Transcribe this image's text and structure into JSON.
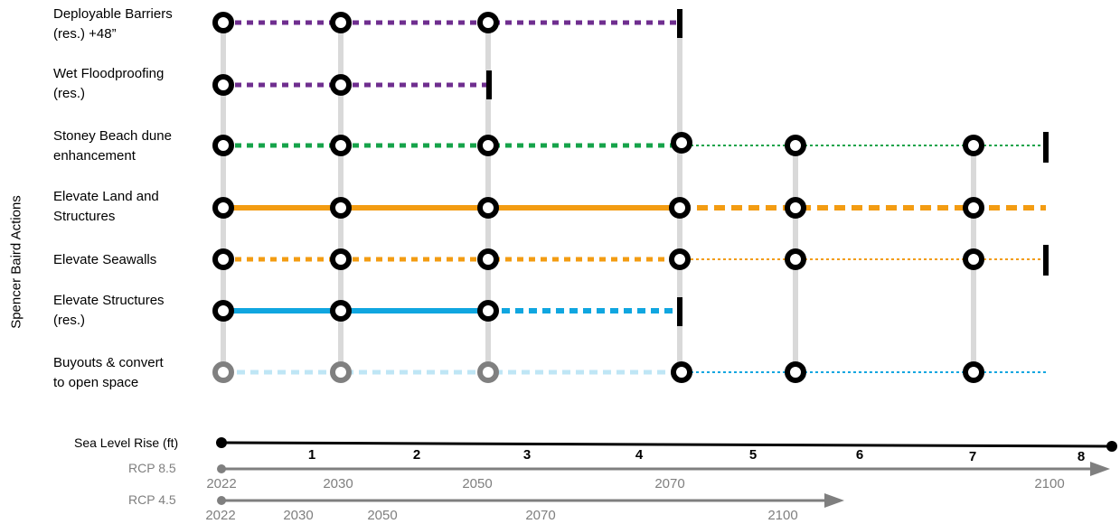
{
  "y_axis_label": "Spencer Baird Actions",
  "actions": [
    {
      "line1": "Deployable Barriers",
      "line2": "(res.) +48”",
      "color": "#6f2e8f"
    },
    {
      "line1": "Wet Floodproofing",
      "line2": "(res.)",
      "color": "#6f2e8f"
    },
    {
      "line1": "Stoney Beach dune",
      "line2": "enhancement",
      "color": "#16a34a"
    },
    {
      "line1": "Elevate Land and",
      "line2": "Structures",
      "color": "#f39c12"
    },
    {
      "line1": "Elevate Seawalls",
      "line2": "",
      "color": "#f39c12"
    },
    {
      "line1": "Elevate Structures",
      "line2": "(res.)",
      "color": "#10a6e0"
    },
    {
      "line1": "Buyouts & convert",
      "line2": "to open space",
      "color": "#10a6e0"
    }
  ],
  "sea_level": {
    "label": "Sea Level Rise (ft)",
    "ticks": [
      "1",
      "2",
      "3",
      "4",
      "5",
      "6",
      "7",
      "8"
    ]
  },
  "rcp85": {
    "label": "RCP 8.5",
    "years": [
      "2022",
      "2030",
      "2050",
      "2070",
      "2100"
    ]
  },
  "rcp45": {
    "label": "RCP 4.5",
    "years": [
      "2022",
      "2030",
      "2050",
      "2070",
      "2100"
    ]
  },
  "colors": {
    "purple": "#6f2e8f",
    "green": "#16a34a",
    "orange": "#f39c12",
    "blue": "#10a6e0",
    "light_blue": "#bfe6f5",
    "gray_line": "#d9d9d9",
    "gray_axis": "#7f7f7f"
  }
}
